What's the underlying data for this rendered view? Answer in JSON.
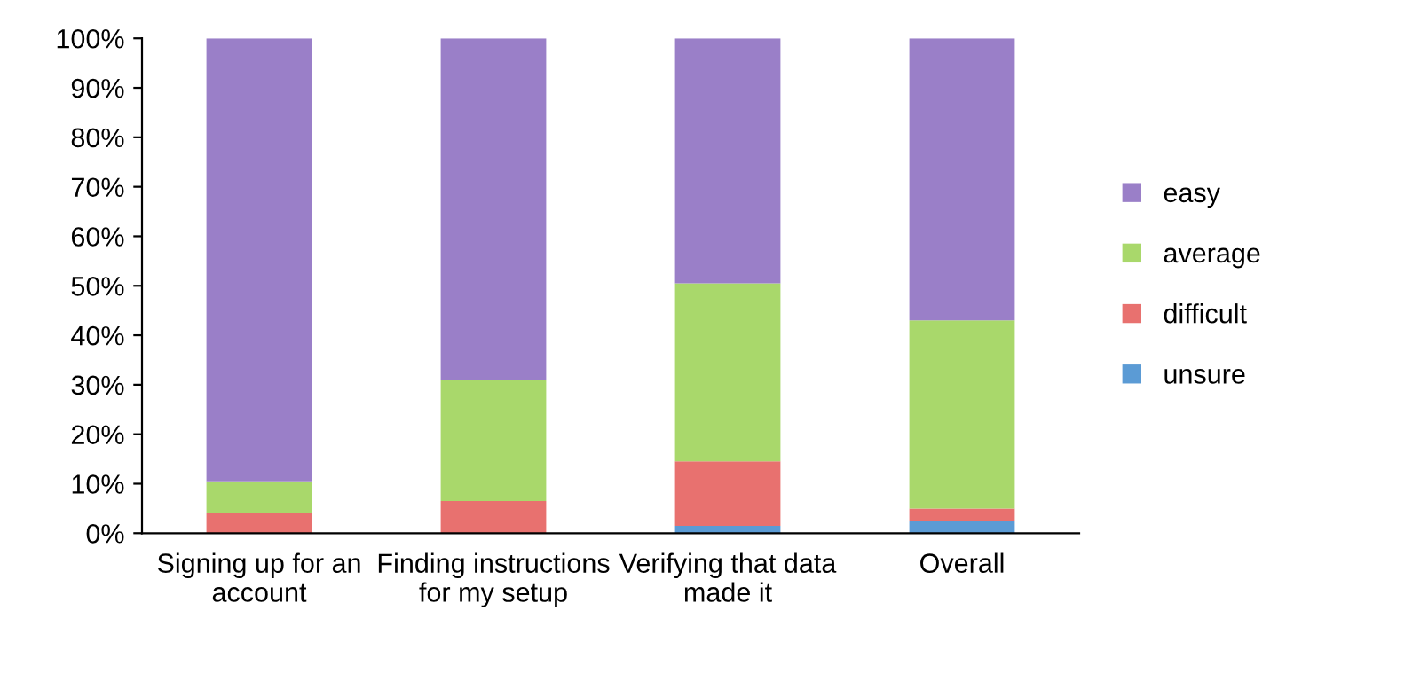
{
  "chart_data": {
    "type": "bar",
    "stacked": true,
    "categories": [
      "Signing up for an account",
      "Finding instructions for my setup",
      "Verifying that data made it",
      "Overall"
    ],
    "series": [
      {
        "name": "unsure",
        "color": "#5b9bd5",
        "values": [
          0,
          0,
          1.5,
          2.5
        ]
      },
      {
        "name": "difficult",
        "color": "#e8716f",
        "values": [
          4,
          6.5,
          13,
          2.5
        ]
      },
      {
        "name": "average",
        "color": "#a9d86b",
        "values": [
          6.5,
          24.5,
          36,
          38
        ]
      },
      {
        "name": "easy",
        "color": "#9a7fc8",
        "values": [
          89.5,
          69,
          49.5,
          57
        ]
      }
    ],
    "ylim": [
      0,
      100
    ],
    "yticks": [
      {
        "value": 0,
        "label": "0%"
      },
      {
        "value": 10,
        "label": "10%"
      },
      {
        "value": 20,
        "label": "20%"
      },
      {
        "value": 30,
        "label": "30%"
      },
      {
        "value": 40,
        "label": "40%"
      },
      {
        "value": 50,
        "label": "50%"
      },
      {
        "value": 60,
        "label": "60%"
      },
      {
        "value": 70,
        "label": "70%"
      },
      {
        "value": 80,
        "label": "80%"
      },
      {
        "value": 90,
        "label": "90%"
      },
      {
        "value": 100,
        "label": "100%"
      }
    ],
    "grid": false,
    "legend": "right"
  }
}
